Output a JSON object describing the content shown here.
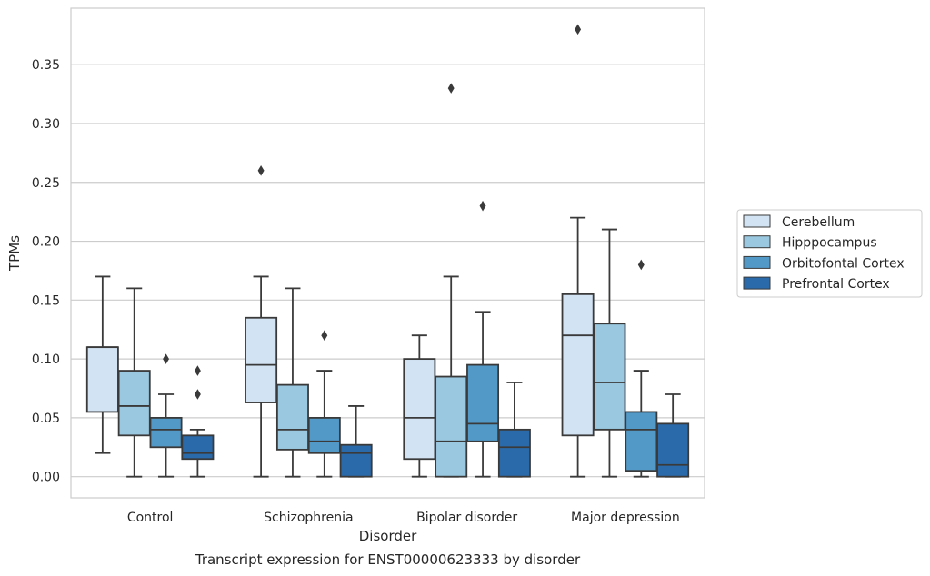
{
  "chart_data": {
    "type": "box",
    "title": "Transcript expression for ENST00000623333 by disorder",
    "xlabel": "Disorder",
    "ylabel": "TPMs",
    "categories": [
      "Control",
      "Schizophrenia",
      "Bipolar disorder",
      "Major depression"
    ],
    "ylim": [
      -0.018,
      0.398
    ],
    "yticks": [
      "0.00",
      "0.05",
      "0.10",
      "0.15",
      "0.20",
      "0.25",
      "0.30",
      "0.35"
    ],
    "grid": "horizontal",
    "legend_position": "right",
    "series": [
      {
        "name": "Cerebellum",
        "color": "#d2e3f3",
        "boxes": [
          {
            "whisker_low": 0.02,
            "q1": 0.055,
            "median": 0.11,
            "q3": 0.11,
            "whisker_high": 0.17,
            "outliers": []
          },
          {
            "whisker_low": 0.0,
            "q1": 0.063,
            "median": 0.095,
            "q3": 0.135,
            "whisker_high": 0.17,
            "outliers": [
              0.26
            ]
          },
          {
            "whisker_low": 0.0,
            "q1": 0.015,
            "median": 0.05,
            "q3": 0.1,
            "whisker_high": 0.12,
            "outliers": []
          },
          {
            "whisker_low": 0.0,
            "q1": 0.035,
            "median": 0.12,
            "q3": 0.155,
            "whisker_high": 0.22,
            "outliers": [
              0.38
            ]
          }
        ]
      },
      {
        "name": "Hipppocampus",
        "color": "#9ac8e0",
        "boxes": [
          {
            "whisker_low": 0.0,
            "q1": 0.035,
            "median": 0.06,
            "q3": 0.09,
            "whisker_high": 0.16,
            "outliers": []
          },
          {
            "whisker_low": 0.0,
            "q1": 0.023,
            "median": 0.04,
            "q3": 0.078,
            "whisker_high": 0.16,
            "outliers": []
          },
          {
            "whisker_low": 0.0,
            "q1": 0.0,
            "median": 0.03,
            "q3": 0.085,
            "whisker_high": 0.17,
            "outliers": [
              0.33
            ]
          },
          {
            "whisker_low": 0.0,
            "q1": 0.04,
            "median": 0.08,
            "q3": 0.13,
            "whisker_high": 0.21,
            "outliers": []
          }
        ]
      },
      {
        "name": "Orbitofontal Cortex",
        "color": "#5299c8",
        "boxes": [
          {
            "whisker_low": 0.0,
            "q1": 0.025,
            "median": 0.04,
            "q3": 0.05,
            "whisker_high": 0.07,
            "outliers": [
              0.1
            ]
          },
          {
            "whisker_low": 0.0,
            "q1": 0.02,
            "median": 0.03,
            "q3": 0.05,
            "whisker_high": 0.09,
            "outliers": [
              0.12
            ]
          },
          {
            "whisker_low": 0.0,
            "q1": 0.03,
            "median": 0.045,
            "q3": 0.095,
            "whisker_high": 0.14,
            "outliers": [
              0.23
            ]
          },
          {
            "whisker_low": 0.0,
            "q1": 0.005,
            "median": 0.04,
            "q3": 0.055,
            "whisker_high": 0.09,
            "outliers": [
              0.18
            ]
          }
        ]
      },
      {
        "name": "Prefrontal Cortex",
        "color": "#2a6aab",
        "boxes": [
          {
            "whisker_low": 0.0,
            "q1": 0.015,
            "median": 0.02,
            "q3": 0.035,
            "whisker_high": 0.04,
            "outliers": [
              0.07,
              0.09
            ]
          },
          {
            "whisker_low": 0.0,
            "q1": 0.0,
            "median": 0.02,
            "q3": 0.027,
            "whisker_high": 0.06,
            "outliers": []
          },
          {
            "whisker_low": 0.0,
            "q1": 0.0,
            "median": 0.025,
            "q3": 0.04,
            "whisker_high": 0.08,
            "outliers": []
          },
          {
            "whisker_low": 0.0,
            "q1": 0.0,
            "median": 0.01,
            "q3": 0.045,
            "whisker_high": 0.07,
            "outliers": []
          }
        ]
      }
    ]
  }
}
